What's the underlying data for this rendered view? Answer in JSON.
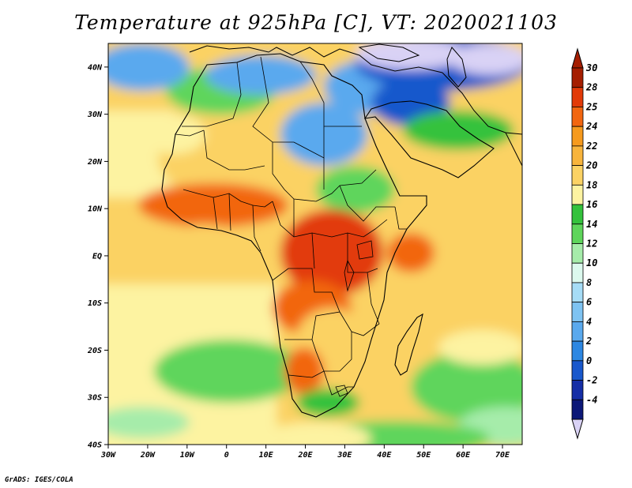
{
  "title": "Temperature at 925hPa [C], VT: 2020021103",
  "credit": "GrADS: IGES/COLA",
  "map": {
    "lon_range": [
      -30,
      75
    ],
    "lat_range": [
      -40,
      45
    ],
    "x_ticks": [
      {
        "lon": -30,
        "label": "30W"
      },
      {
        "lon": -20,
        "label": "20W"
      },
      {
        "lon": -10,
        "label": "10W"
      },
      {
        "lon": 0,
        "label": "0"
      },
      {
        "lon": 10,
        "label": "10E"
      },
      {
        "lon": 20,
        "label": "20E"
      },
      {
        "lon": 30,
        "label": "30E"
      },
      {
        "lon": 40,
        "label": "40E"
      },
      {
        "lon": 50,
        "label": "50E"
      },
      {
        "lon": 60,
        "label": "60E"
      },
      {
        "lon": 70,
        "label": "70E"
      }
    ],
    "y_ticks": [
      {
        "lat": 40,
        "label": "40N"
      },
      {
        "lat": 30,
        "label": "30N"
      },
      {
        "lat": 20,
        "label": "20N"
      },
      {
        "lat": 10,
        "label": "10N"
      },
      {
        "lat": 0,
        "label": "EQ"
      },
      {
        "lat": -10,
        "label": "10S"
      },
      {
        "lat": -20,
        "label": "20S"
      },
      {
        "lat": -30,
        "label": "30S"
      },
      {
        "lat": -40,
        "label": "40S"
      }
    ]
  },
  "colorbar": {
    "bins": [
      {
        "label": "30",
        "color": "#a51e01"
      },
      {
        "label": "28",
        "color": "#e23a08"
      },
      {
        "label": "25",
        "color": "#f26610"
      },
      {
        "label": "24",
        "color": "#f69a1e"
      },
      {
        "label": "22",
        "color": "#f8b43c"
      },
      {
        "label": "20",
        "color": "#fbd264"
      },
      {
        "label": "18",
        "color": "#fdf3a1"
      },
      {
        "label": "16",
        "color": "#34c23c"
      },
      {
        "label": "14",
        "color": "#5ed55b"
      },
      {
        "label": "12",
        "color": "#a6ecaa"
      },
      {
        "label": "10",
        "color": "#dcf9ee"
      },
      {
        "label": "8",
        "color": "#a6dcf6"
      },
      {
        "label": "6",
        "color": "#7ec3f2"
      },
      {
        "label": "4",
        "color": "#5aa9ee"
      },
      {
        "label": "2",
        "color": "#2d87e2"
      },
      {
        "label": "0",
        "color": "#1958cc"
      },
      {
        "label": "-2",
        "color": "#152ea6"
      },
      {
        "label": "-4",
        "color": "#0c1878"
      }
    ],
    "over_color": "#a51e01",
    "under_color": "#d9d2f5"
  },
  "field_colors": {
    "ocean_warm": "#fbd264",
    "ocean_mild": "#fdf3a1",
    "ocean_cool": "#5ed55b",
    "ocean_cold": "#a6ecaa",
    "sahara": "#fbd264",
    "sahel_hot": "#f26610",
    "congo_hot": "#e23a08",
    "med_cool": "#5aa9ee",
    "med_cold": "#1958cc",
    "europe_cold": "#d9d2f5",
    "sa_green": "#34c23c",
    "lines": "#000000"
  }
}
